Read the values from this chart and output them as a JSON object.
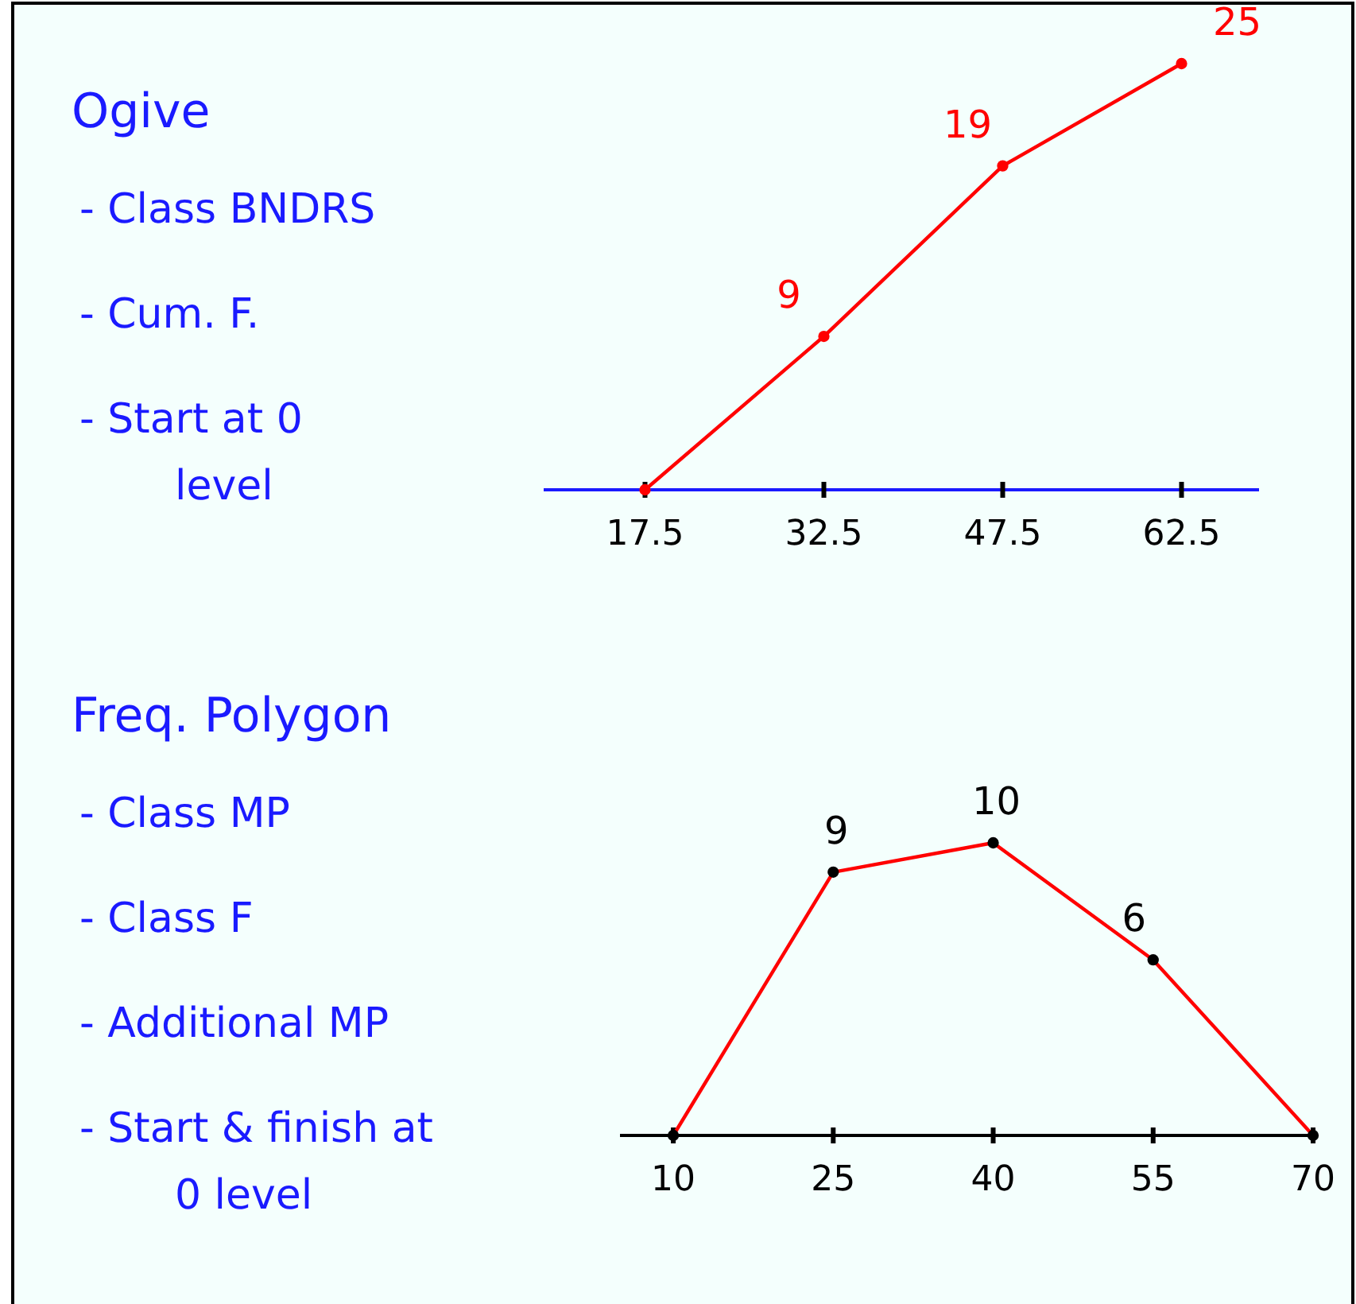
{
  "chart_data": [
    {
      "type": "line",
      "annotations": [
        "Ogive",
        "- Class BNDRS",
        "- Cum. F.",
        "- Start at 0 level"
      ],
      "x": [
        17.5,
        32.5,
        47.5,
        62.5
      ],
      "xlim": [
        9,
        69
      ],
      "xticks": [
        17.5,
        32.5,
        47.5,
        62.5
      ],
      "series": [
        {
          "color": "#ff0000",
          "values": [
            0,
            9,
            19,
            25
          ],
          "value_labels": [
            null,
            "9",
            "19",
            "25"
          ]
        }
      ],
      "marker": "circle",
      "grid": false,
      "tick_labels": "x"
    },
    {
      "type": "line",
      "annotations": [
        "Freq. Polygon",
        "- Class MP",
        "- Class F",
        "- Additional MP",
        "- Start & finish at 0 level"
      ],
      "x": [
        10,
        25,
        40,
        55,
        70
      ],
      "xlim": [
        5,
        70
      ],
      "xticks": [
        10,
        25,
        40,
        55,
        70
      ],
      "series": [
        {
          "color": "#ff0000",
          "values": [
            0,
            9,
            10,
            6,
            0
          ],
          "value_labels": [
            null,
            "9",
            "10",
            "6",
            null
          ]
        }
      ],
      "marker": "circle",
      "grid": false,
      "tick_labels": "x"
    }
  ]
}
